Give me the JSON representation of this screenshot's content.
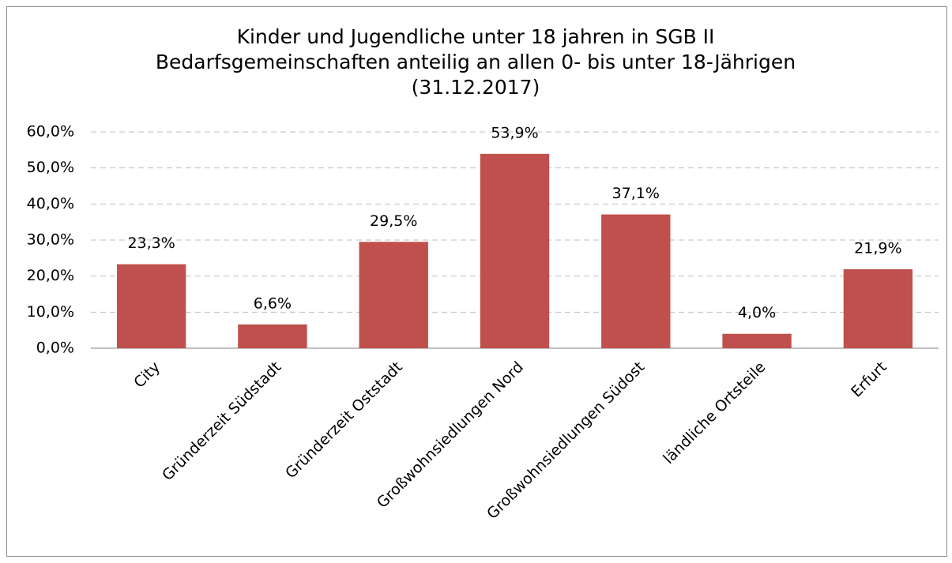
{
  "chart_data": {
    "type": "bar",
    "title": [
      "Kinder  und Jugendliche unter 18 jahren in SGB II",
      "Bedarfsgemeinschaften anteilig an allen 0- bis unter 18-Jährigen",
      "(31.12.2017)"
    ],
    "categories": [
      "City",
      "Gründerzeit Südstadt",
      "Gründerzeit Oststadt",
      "Großwohnsiedlungen Nord",
      "Großwohnsiedlungen Südost",
      "ländliche Ortsteile",
      "Erfurt"
    ],
    "values": [
      23.3,
      6.6,
      29.5,
      53.9,
      37.1,
      4.0,
      21.9
    ],
    "value_labels": [
      "23,3%",
      "6,6%",
      "29,5%",
      "53,9%",
      "37,1%",
      "4,0%",
      "21,9%"
    ],
    "color": "#c0504d",
    "ylim": [
      0,
      60
    ],
    "yticks": [
      {
        "value": 0,
        "label": "0,0%"
      },
      {
        "value": 10,
        "label": "10,0%"
      },
      {
        "value": 20,
        "label": "20,0%"
      },
      {
        "value": 30,
        "label": "30,0%"
      },
      {
        "value": 40,
        "label": "40,0%"
      },
      {
        "value": 50,
        "label": "50,0%"
      },
      {
        "value": 60,
        "label": "60,0%"
      }
    ],
    "grid": true
  }
}
